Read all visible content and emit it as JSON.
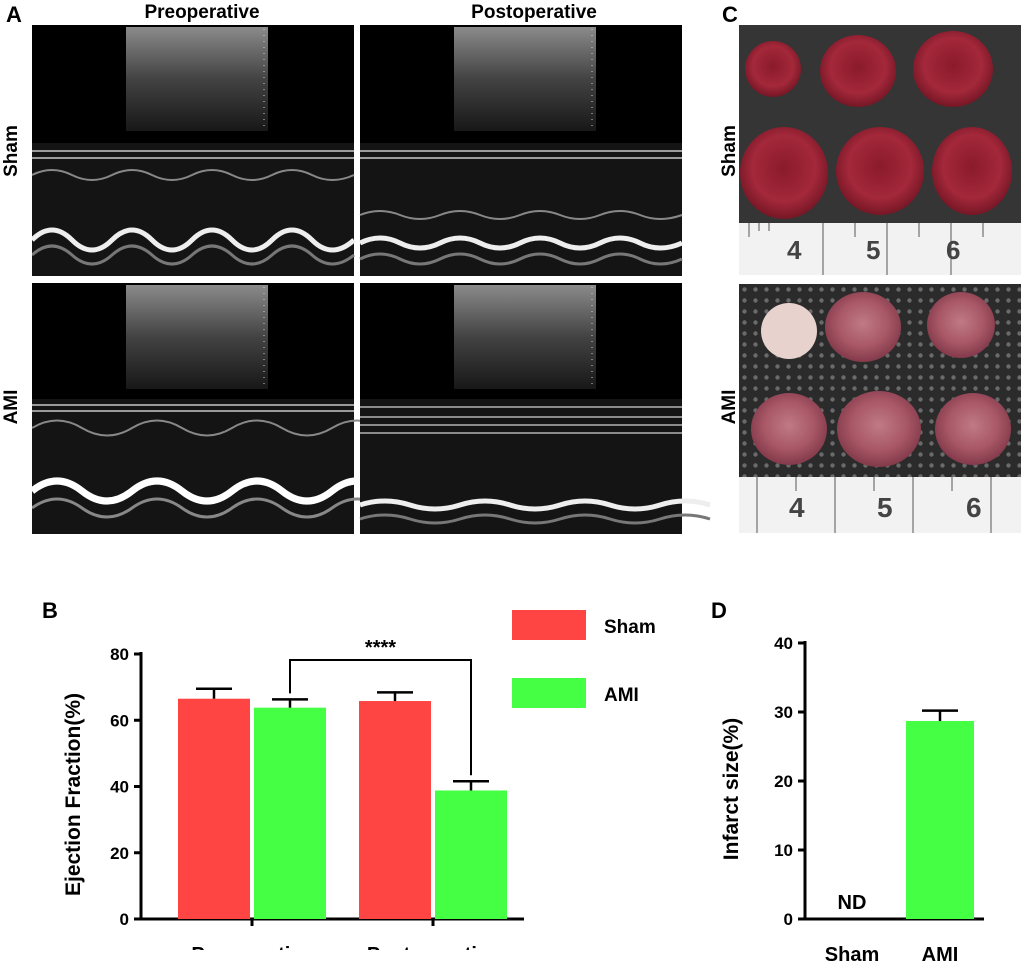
{
  "panel_a": {
    "letter": "A",
    "columns": [
      "Preoperative",
      "Postoperative"
    ],
    "rows": [
      "Sham",
      "AMI"
    ]
  },
  "panel_c": {
    "letter": "C",
    "rows": [
      "Sham",
      "AMI"
    ],
    "ruler_numbers": [
      "4",
      "5",
      "6"
    ]
  },
  "chart_data": [
    {
      "panel": "B",
      "type": "bar",
      "categories": [
        "Preoperative",
        "Postoperative"
      ],
      "series": [
        {
          "name": "Sham",
          "color": "#ff4444",
          "values": [
            66.5,
            65.8
          ],
          "errors": [
            3.0,
            2.6
          ]
        },
        {
          "name": "AMI",
          "color": "#44ff44",
          "values": [
            63.8,
            38.8
          ],
          "errors": [
            2.5,
            2.8
          ]
        }
      ],
      "ylabel": "Ejection Fraction(%)",
      "ylim": [
        0,
        80
      ],
      "yticks": [
        0,
        20,
        40,
        60,
        80
      ],
      "significance": "****",
      "legend": "top-right"
    },
    {
      "panel": "D",
      "type": "bar",
      "categories": [
        "Sham",
        "AMI"
      ],
      "values": [
        null,
        28.7
      ],
      "errors": [
        null,
        1.5
      ],
      "value_labels": [
        "ND",
        ""
      ],
      "colors": [
        "#44ff44",
        "#44ff44"
      ],
      "ylabel": "Infarct size(%)",
      "ylim": [
        0,
        40
      ],
      "yticks": [
        0,
        10,
        20,
        30,
        40
      ]
    }
  ]
}
